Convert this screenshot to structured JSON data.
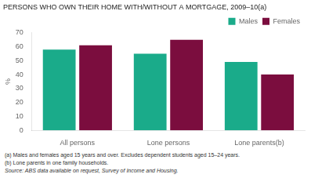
{
  "chart_data": {
    "type": "bar",
    "title": "PERSONS WHO OWN THEIR HOME WITH/WITHOUT A MORTGAGE, 2009–10(a)",
    "categories": [
      "All persons",
      "Lone persons",
      "Lone parents(b)"
    ],
    "series": [
      {
        "name": "Males",
        "color": "#1aab8a",
        "values": [
          58,
          55,
          49
        ]
      },
      {
        "name": "Females",
        "color": "#7b0d3e",
        "values": [
          61,
          65,
          40
        ]
      }
    ],
    "ylabel": "%",
    "ylim": [
      0,
      70
    ],
    "yticks": [
      0,
      10,
      20,
      30,
      40,
      50,
      60,
      70
    ],
    "grid": false,
    "legend": "upper right",
    "annotations": [
      "(a) Males and females aged 15 years and over. Excludes dependent students aged 15–24 years.",
      "(b) Lone parents in one family households.",
      "Source: ABS data available on request, Survey of Income and Housing."
    ]
  }
}
